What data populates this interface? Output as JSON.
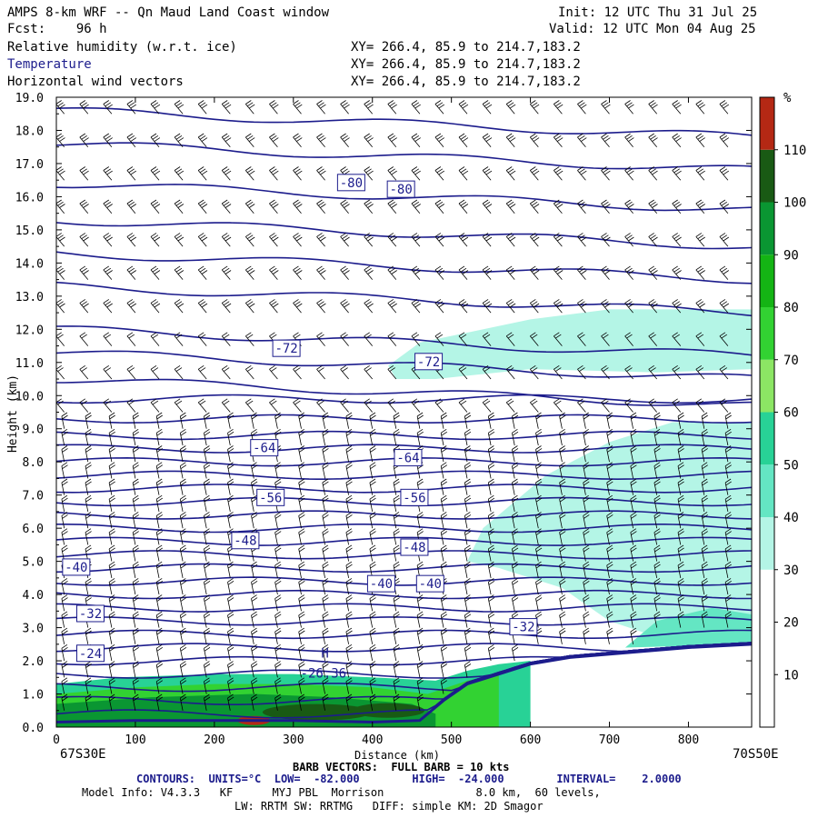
{
  "header": {
    "title": "AMPS 8-km WRF -- Qn Maud Land Coast window",
    "forecast": "Fcst:    96 h",
    "init": "Init: 12 UTC Thu 31 Jul 25",
    "valid": "Valid: 12 UTC Mon 04 Aug 25",
    "fields": [
      {
        "name": "Relative humidity (w.r.t. ice)",
        "xy": "XY= 266.4, 85.9 to 214.7,183.2",
        "color": "#000000"
      },
      {
        "name": "Temperature",
        "xy": "XY= 266.4, 85.9 to 214.7,183.2",
        "color": "#1c1c8c"
      },
      {
        "name": "Horizontal wind vectors",
        "xy": "XY= 266.4, 85.9 to 214.7,183.2",
        "color": "#000000"
      }
    ]
  },
  "chart_data": {
    "type": "heatmap",
    "xlabel": "Distance (km)",
    "ylabel": "Height (km)",
    "xlim": [
      0,
      880
    ],
    "ylim": [
      0,
      19
    ],
    "x_ticks": [
      0,
      100,
      200,
      300,
      400,
      500,
      600,
      700,
      800
    ],
    "y_ticks": [
      "0.0",
      "1.0",
      "2.0",
      "3.0",
      "4.0",
      "5.0",
      "6.0",
      "7.0",
      "8.0",
      "9.0",
      "10.0",
      "11.0",
      "12.0",
      "13.0",
      "14.0",
      "15.0",
      "16.0",
      "17.0",
      "18.0",
      "19.0"
    ],
    "x_left_label": "67S30E",
    "x_right_label": "70S50E",
    "colorbar": {
      "unit": "%",
      "ticks": [
        "10",
        "20",
        "30",
        "40",
        "50",
        "60",
        "70",
        "80",
        "90",
        "100",
        "110"
      ],
      "colors": [
        "#ffffff",
        "#ffffff",
        "#ffffff",
        "#b4f5e6",
        "#64e6c3",
        "#28d296",
        "#8ce664",
        "#32d232",
        "#14b414",
        "#0a9632",
        "#195a14",
        "#b42814"
      ]
    },
    "contour_labels": [
      {
        "text": "-80",
        "x": 372,
        "y": 16.4
      },
      {
        "text": "-80",
        "x": 435,
        "y": 16.2
      },
      {
        "text": "-72",
        "x": 290,
        "y": 11.4
      },
      {
        "text": "-72",
        "x": 470,
        "y": 11.0
      },
      {
        "text": "-64",
        "x": 262,
        "y": 8.4
      },
      {
        "text": "-64",
        "x": 444,
        "y": 8.1
      },
      {
        "text": "-56",
        "x": 270,
        "y": 6.9
      },
      {
        "text": "-56",
        "x": 452,
        "y": 6.9
      },
      {
        "text": "-48",
        "x": 238,
        "y": 5.6
      },
      {
        "text": "-48",
        "x": 452,
        "y": 5.4
      },
      {
        "text": "-40",
        "x": 24,
        "y": 4.8
      },
      {
        "text": "-40",
        "x": 410,
        "y": 4.3
      },
      {
        "text": "-40",
        "x": 472,
        "y": 4.3
      },
      {
        "text": "-32",
        "x": 42,
        "y": 3.4
      },
      {
        "text": "-32",
        "x": 590,
        "y": 3.0
      },
      {
        "text": "-24",
        "x": 42,
        "y": 2.2
      }
    ],
    "extrema": [
      {
        "text": "H",
        "x": 340,
        "y": 2.1
      },
      {
        "text": "-26.36",
        "x": 338,
        "y": 1.5
      }
    ],
    "temperature_contours": {
      "units": "°C",
      "low": -82.0,
      "high": -24.0,
      "interval": 2.0
    }
  },
  "footer": {
    "barb": "BARB VECTORS:  FULL BARB = 10 kts",
    "contours": "CONTOURS:  UNITS=°C  LOW=  -82.000        HIGH=  -24.000        INTERVAL=    2.0000",
    "model1": "Model Info: V4.3.3   KF      MYJ PBL  Morrison              8.0 km,  60 levels,",
    "model2": "LW: RRTM SW: RRTMG   DIFF: simple KM: 2D Smagor"
  }
}
